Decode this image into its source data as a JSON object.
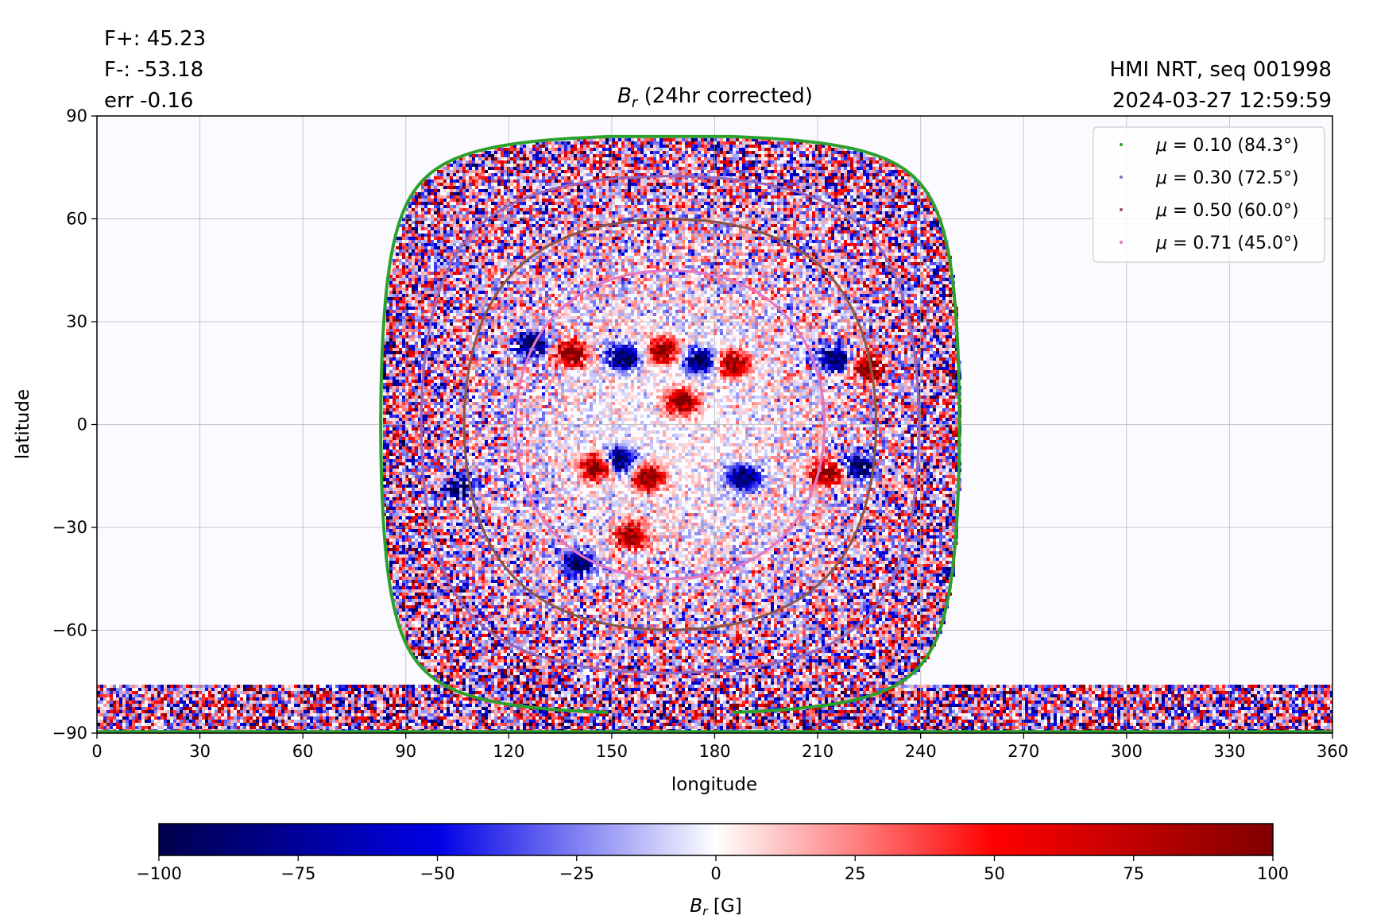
{
  "header": {
    "flux_lines": [
      "F+: 45.23",
      "F-: -53.18",
      "err -0.16"
    ],
    "source_lines": [
      "HMI NRT, seq 001998",
      "2024-03-27 12:59:59"
    ]
  },
  "chart_data": {
    "type": "heatmap",
    "title_symbol": "B",
    "title_subscript": "r",
    "title_text": " (24hr corrected)",
    "xlabel": "longitude",
    "ylabel": "latitude",
    "xlim": [
      0,
      360
    ],
    "ylim": [
      -90,
      90
    ],
    "xticks": [
      0,
      30,
      60,
      90,
      120,
      150,
      180,
      210,
      240,
      270,
      300,
      330,
      360
    ],
    "xtick_labels": [
      "0",
      "30",
      "60",
      "90",
      "120",
      "150",
      "180",
      "210",
      "240",
      "270",
      "300",
      "330",
      "360"
    ],
    "yticks": [
      90,
      60,
      30,
      0,
      -30,
      -60,
      -90
    ],
    "ytick_labels": [
      "90",
      "60",
      "30",
      "0",
      "−30",
      "−60",
      "−90"
    ],
    "grid": true,
    "legend_position": "top-right",
    "disk_center_lon": 167,
    "series": [
      {
        "name": "μ = 0.10 (84.3°)",
        "mu_text": "μ",
        "value_text": " = 0.10 (84.3°)",
        "color": "#2ca02c",
        "angle_deg": 84.3
      },
      {
        "name": "μ = 0.30 (72.5°)",
        "mu_text": "μ",
        "value_text": " = 0.30 (72.5°)",
        "color": "#9467bd",
        "angle_deg": 72.5
      },
      {
        "name": "μ = 0.50 (60.0°)",
        "mu_text": "μ",
        "value_text": " = 0.50 (60.0°)",
        "color": "#8c564b",
        "angle_deg": 60.0
      },
      {
        "name": "μ = 0.71 (45.0°)",
        "mu_text": "μ",
        "value_text": " = 0.71 (45.0°)",
        "color": "#e377c2",
        "angle_deg": 45.0
      }
    ],
    "active_regions": [
      {
        "lon": 138,
        "lat": 21,
        "polarity": 1
      },
      {
        "lon": 126,
        "lat": 24,
        "polarity": -1
      },
      {
        "lon": 153,
        "lat": 20,
        "polarity": -1
      },
      {
        "lon": 165,
        "lat": 22,
        "polarity": 1
      },
      {
        "lon": 175,
        "lat": 19,
        "polarity": -1
      },
      {
        "lon": 185,
        "lat": 18,
        "polarity": 1
      },
      {
        "lon": 214,
        "lat": 20,
        "polarity": -1
      },
      {
        "lon": 225,
        "lat": 17,
        "polarity": 1
      },
      {
        "lon": 170,
        "lat": 7,
        "polarity": 1
      },
      {
        "lon": 212,
        "lat": -14,
        "polarity": 1
      },
      {
        "lon": 222,
        "lat": -12,
        "polarity": -1
      },
      {
        "lon": 188,
        "lat": -15,
        "polarity": -1
      },
      {
        "lon": 160,
        "lat": -15,
        "polarity": 1
      },
      {
        "lon": 145,
        "lat": -12,
        "polarity": 1
      },
      {
        "lon": 152,
        "lat": -10,
        "polarity": -1
      },
      {
        "lon": 105,
        "lat": -18,
        "polarity": -1
      },
      {
        "lon": 155,
        "lat": -32,
        "polarity": 1
      },
      {
        "lon": 140,
        "lat": -40,
        "polarity": -1
      }
    ],
    "colorbar": {
      "min": -100,
      "max": 100,
      "ticks": [
        -100,
        -75,
        -50,
        -25,
        0,
        25,
        50,
        75,
        100
      ],
      "tick_labels": [
        "−100",
        "−75",
        "−50",
        "−25",
        "0",
        "25",
        "50",
        "75",
        "100"
      ],
      "label_symbol": "B",
      "label_subscript": "r",
      "label_unit": " [G]",
      "colormap": "seismic"
    }
  }
}
